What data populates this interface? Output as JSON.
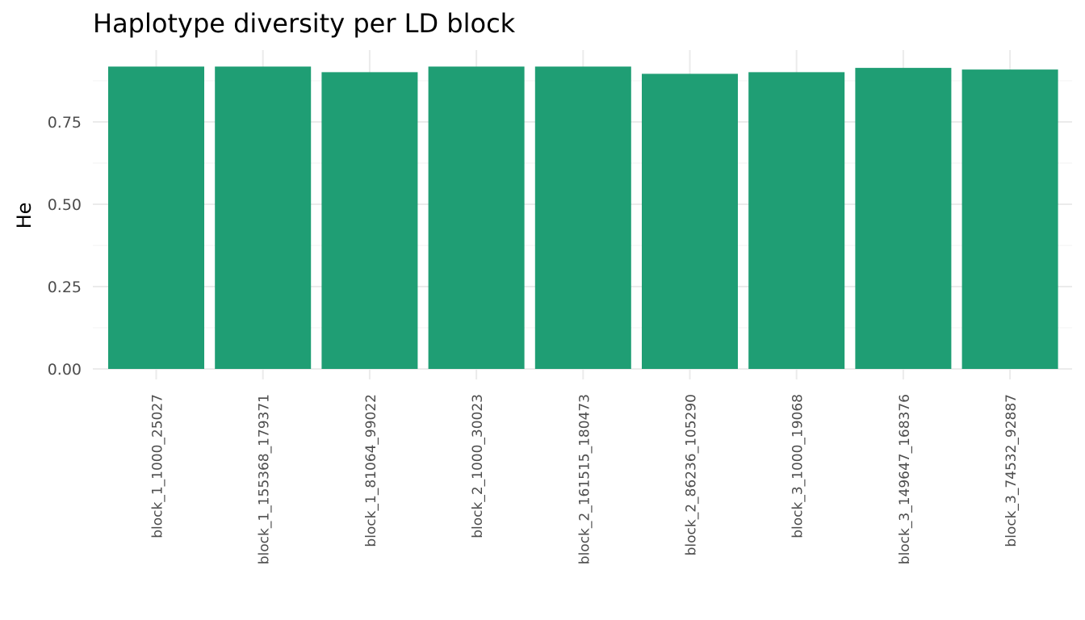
{
  "chart_data": {
    "type": "bar",
    "title": "Haplotype diversity per LD block",
    "xlabel": "",
    "ylabel": "He",
    "categories": [
      "block_1_1000_25027",
      "block_1_155368_179371",
      "block_1_81064_99022",
      "block_2_1000_30023",
      "block_2_161515_180473",
      "block_2_86236_105290",
      "block_3_1000_19068",
      "block_3_149647_168376",
      "block_3_74532_92887"
    ],
    "values": [
      0.918,
      0.918,
      0.901,
      0.918,
      0.918,
      0.896,
      0.901,
      0.914,
      0.909
    ],
    "ylim": [
      0,
      0.95
    ],
    "yticks": [
      0.0,
      0.25,
      0.5,
      0.75
    ],
    "ytick_labels": [
      "0.00",
      "0.25",
      "0.50",
      "0.75"
    ],
    "grid": true,
    "legend": "none",
    "colors": {
      "bar": "#1f9e74",
      "grid_major": "#ebebeb",
      "grid_minor": "#f5f5f5",
      "tick_text": "#4d4d4d",
      "background": "#ffffff"
    }
  }
}
